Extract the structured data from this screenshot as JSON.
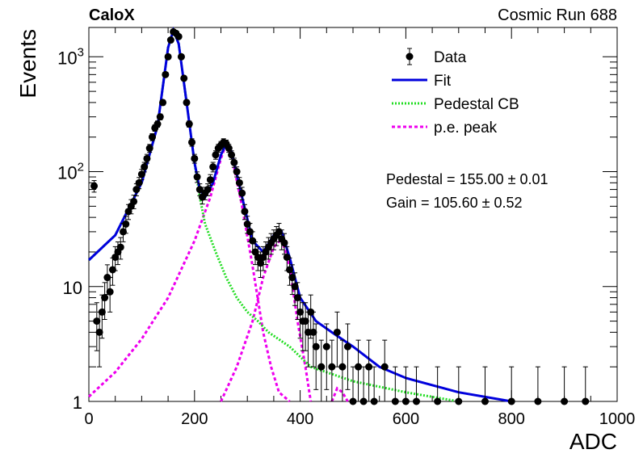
{
  "header": {
    "experiment": "CaloX",
    "run": "Cosmic Run 688"
  },
  "chart_data": {
    "type": "scatter",
    "xlabel": "ADC",
    "ylabel": "Events",
    "xlim": [
      0,
      1000
    ],
    "ylim": [
      1,
      1800
    ],
    "yscale": "log",
    "x_ticks": [
      {
        "v": 0,
        "label": "0"
      },
      {
        "v": 200,
        "label": "200"
      },
      {
        "v": 400,
        "label": "400"
      },
      {
        "v": 600,
        "label": "600"
      },
      {
        "v": 800,
        "label": "800"
      },
      {
        "v": 1000,
        "label": "1000"
      }
    ],
    "y_ticks": [
      {
        "v": 1,
        "label": "1"
      },
      {
        "v": 10,
        "label": "10"
      },
      {
        "v": 100,
        "label": "10",
        "exp": "2"
      },
      {
        "v": 1000,
        "label": "10",
        "exp": "3"
      }
    ],
    "legend": {
      "position": "top-right",
      "entries": [
        {
          "label": "Data",
          "style": "marker"
        },
        {
          "label": "Fit",
          "style": "line",
          "color": "#0000dd"
        },
        {
          "label": "Pedestal CB",
          "style": "dotted",
          "color": "#22dd22"
        },
        {
          "label": "p.e. peak",
          "style": "dashed",
          "color": "#ee00ee"
        }
      ]
    },
    "annotations": [
      "Pedestal = 155.00 ± 0.01",
      "Gain = 105.60 ± 0.52"
    ],
    "fit_parameters": {
      "pedestal": 155.0,
      "pedestal_err": 0.01,
      "gain": 105.6,
      "gain_err": 0.52
    },
    "colors": {
      "data": "#000000",
      "fit": "#0000dd",
      "pedestal": "#22dd22",
      "pe_peak": "#ee00ee"
    },
    "series": [
      {
        "name": "Data",
        "points": [
          [
            10,
            75
          ],
          [
            15,
            5
          ],
          [
            20,
            4
          ],
          [
            25,
            6
          ],
          [
            30,
            8
          ],
          [
            35,
            12
          ],
          [
            40,
            9
          ],
          [
            45,
            14
          ],
          [
            50,
            18
          ],
          [
            55,
            20
          ],
          [
            60,
            22
          ],
          [
            65,
            30
          ],
          [
            70,
            35
          ],
          [
            75,
            45
          ],
          [
            80,
            50
          ],
          [
            85,
            55
          ],
          [
            90,
            70
          ],
          [
            95,
            80
          ],
          [
            100,
            95
          ],
          [
            105,
            110
          ],
          [
            110,
            130
          ],
          [
            115,
            160
          ],
          [
            120,
            200
          ],
          [
            125,
            240
          ],
          [
            130,
            260
          ],
          [
            135,
            300
          ],
          [
            140,
            400
          ],
          [
            145,
            700
          ],
          [
            150,
            1000
          ],
          [
            155,
            1400
          ],
          [
            160,
            1650
          ],
          [
            165,
            1600
          ],
          [
            170,
            1500
          ],
          [
            175,
            1000
          ],
          [
            180,
            650
          ],
          [
            185,
            400
          ],
          [
            190,
            260
          ],
          [
            195,
            180
          ],
          [
            200,
            130
          ],
          [
            205,
            90
          ],
          [
            210,
            70
          ],
          [
            215,
            60
          ],
          [
            220,
            65
          ],
          [
            225,
            70
          ],
          [
            230,
            85
          ],
          [
            235,
            110
          ],
          [
            240,
            140
          ],
          [
            245,
            160
          ],
          [
            250,
            170
          ],
          [
            255,
            180
          ],
          [
            260,
            175
          ],
          [
            265,
            160
          ],
          [
            270,
            140
          ],
          [
            275,
            120
          ],
          [
            280,
            100
          ],
          [
            285,
            80
          ],
          [
            290,
            65
          ],
          [
            295,
            45
          ],
          [
            300,
            35
          ],
          [
            305,
            30
          ],
          [
            310,
            25
          ],
          [
            315,
            20
          ],
          [
            320,
            18
          ],
          [
            325,
            16
          ],
          [
            330,
            18
          ],
          [
            335,
            20
          ],
          [
            340,
            22
          ],
          [
            345,
            24
          ],
          [
            350,
            26
          ],
          [
            355,
            28
          ],
          [
            360,
            30
          ],
          [
            365,
            26
          ],
          [
            370,
            24
          ],
          [
            375,
            18
          ],
          [
            380,
            14
          ],
          [
            385,
            12
          ],
          [
            390,
            10
          ],
          [
            395,
            8
          ],
          [
            400,
            6
          ],
          [
            405,
            5
          ],
          [
            410,
            5
          ],
          [
            415,
            4
          ],
          [
            420,
            6
          ],
          [
            425,
            4
          ],
          [
            430,
            3
          ],
          [
            440,
            2
          ],
          [
            450,
            3
          ],
          [
            460,
            2
          ],
          [
            470,
            4
          ],
          [
            480,
            2
          ],
          [
            490,
            3
          ],
          [
            500,
            1
          ],
          [
            510,
            2
          ],
          [
            520,
            1
          ],
          [
            530,
            2
          ],
          [
            540,
            1
          ],
          [
            560,
            2
          ],
          [
            580,
            1
          ],
          [
            600,
            1
          ],
          [
            620,
            1
          ],
          [
            660,
            1
          ],
          [
            700,
            1
          ],
          [
            750,
            1
          ],
          [
            800,
            1
          ],
          [
            850,
            1
          ],
          [
            900,
            1
          ],
          [
            940,
            1
          ]
        ]
      },
      {
        "name": "Fit",
        "points": [
          [
            0,
            17
          ],
          [
            50,
            28
          ],
          [
            100,
            80
          ],
          [
            130,
            250
          ],
          [
            150,
            1200
          ],
          [
            160,
            1700
          ],
          [
            170,
            1300
          ],
          [
            185,
            400
          ],
          [
            200,
            120
          ],
          [
            210,
            70
          ],
          [
            220,
            60
          ],
          [
            235,
            80
          ],
          [
            250,
            140
          ],
          [
            260,
            175
          ],
          [
            270,
            150
          ],
          [
            290,
            60
          ],
          [
            310,
            25
          ],
          [
            330,
            20
          ],
          [
            350,
            28
          ],
          [
            365,
            30
          ],
          [
            380,
            18
          ],
          [
            400,
            8
          ],
          [
            430,
            5
          ],
          [
            460,
            4
          ],
          [
            500,
            3
          ],
          [
            550,
            2
          ],
          [
            600,
            1.6
          ],
          [
            700,
            1.2
          ],
          [
            800,
            1.0
          ]
        ]
      },
      {
        "name": "Pedestal CB",
        "points": [
          [
            0,
            17
          ],
          [
            50,
            28
          ],
          [
            100,
            80
          ],
          [
            130,
            250
          ],
          [
            150,
            1200
          ],
          [
            160,
            1700
          ],
          [
            170,
            1300
          ],
          [
            185,
            400
          ],
          [
            200,
            120
          ],
          [
            210,
            60
          ],
          [
            220,
            35
          ],
          [
            240,
            20
          ],
          [
            260,
            12
          ],
          [
            280,
            8
          ],
          [
            300,
            6
          ],
          [
            320,
            5
          ],
          [
            340,
            4
          ],
          [
            380,
            3
          ],
          [
            420,
            2
          ],
          [
            500,
            1.5
          ],
          [
            600,
            1.2
          ],
          [
            700,
            1.0
          ]
        ]
      },
      {
        "name": "p.e. peak",
        "points": [
          [
            0,
            1.1
          ],
          [
            50,
            1.8
          ],
          [
            100,
            3.5
          ],
          [
            150,
            8
          ],
          [
            200,
            25
          ],
          [
            230,
            60
          ],
          [
            250,
            130
          ],
          [
            260,
            175
          ],
          [
            270,
            140
          ],
          [
            290,
            50
          ],
          [
            310,
            15
          ],
          [
            330,
            4
          ],
          [
            345,
            2
          ],
          [
            360,
            1.2
          ],
          [
            380,
            1
          ]
        ]
      },
      {
        "name": "p.e. peak 2",
        "points": [
          [
            250,
            1
          ],
          [
            280,
            2
          ],
          [
            310,
            5
          ],
          [
            330,
            12
          ],
          [
            350,
            22
          ],
          [
            365,
            26
          ],
          [
            380,
            15
          ],
          [
            395,
            5
          ],
          [
            410,
            2
          ],
          [
            420,
            1
          ]
        ]
      },
      {
        "name": "p.e. peak 3",
        "points": [
          [
            460,
            1
          ],
          [
            470,
            1.3
          ],
          [
            480,
            1.2
          ],
          [
            490,
            1
          ]
        ]
      }
    ]
  }
}
